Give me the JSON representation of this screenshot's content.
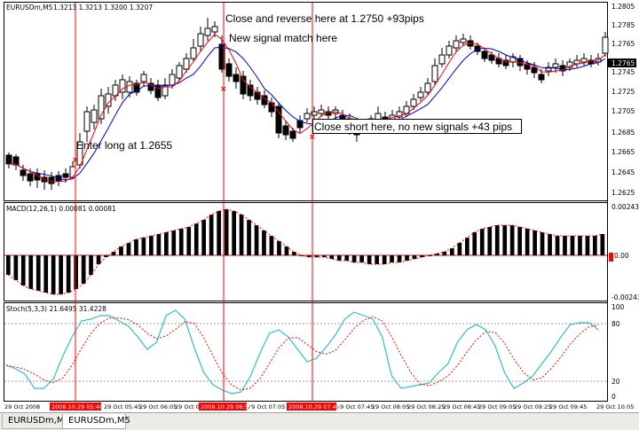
{
  "main": {
    "symbol_info": "EURUSDm,M5",
    "ohlc": "1.3213 1.3213 1.3200 1.3207",
    "price_ticks": [
      "1.2805",
      "1.2785",
      "1.2765",
      "1.2745",
      "1.2725",
      "1.2705",
      "1.2685",
      "1.2665",
      "1.2645",
      "1.2625"
    ],
    "last_price": "1.2765",
    "annotations": {
      "enter_long": "Enter long at 1.2655",
      "close_reverse": "Close and reverse here at 1.2750 +93pips",
      "new_signal": "New signal match here",
      "close_short": "Close short here, no new signals +43 pips"
    }
  },
  "macd": {
    "label": "MACD(12,26,1) 0.00081 0.00081",
    "ticks": [
      "0.00243",
      "0.00",
      "-0.00243"
    ]
  },
  "stoch": {
    "label": "Stoch(5,3,3) 21.6495 31.4228",
    "ticks": [
      "100",
      "80",
      "20",
      "0"
    ]
  },
  "time_axis": {
    "labels": [
      "29 Oct 2008",
      "29 Oct 05:45",
      "29 Oct 06:05",
      "29 Oct 06:25",
      "29 Oct 07:05",
      "29 Oct 07:45",
      "29 Oct 08:05",
      "29 Oct 08:25",
      "29 Oct 08:45",
      "29 Oct 09:05",
      "29 Oct 09:25",
      "29 Oct 09:45",
      "29 Oct 10:05"
    ],
    "highlights": [
      "2008.10.29 05:40",
      "2008.10.29 06:55",
      "2008.10.29 07:40"
    ]
  },
  "tabs": [
    "EURUSDm,M5",
    "EURUSDm,M5"
  ],
  "colors": {
    "signal_line": "#ff0000",
    "ma_red": "#ff0000",
    "ma_blue": "#0000cc",
    "stoch_main": "#33bbcc",
    "highlight_bg": "#ff0000"
  }
}
